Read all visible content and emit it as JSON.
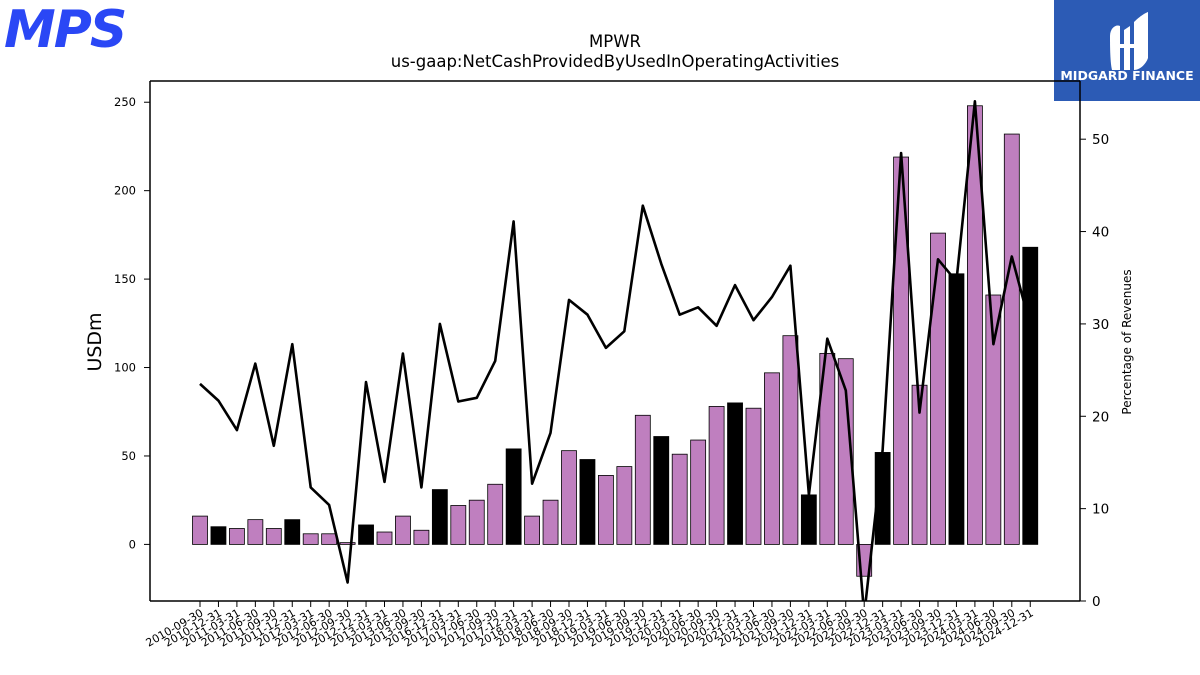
{
  "branding": {
    "left_logo_text": "MPS",
    "right_logo_text": "MIDGARD FINANCE",
    "left_logo_color": "#2a47f5",
    "right_logo_bg": "#2c5bb5"
  },
  "chart_data": {
    "type": "bar",
    "title": "MPWR",
    "subtitle": "us-gaap:NetCashProvidedByUsedInOperatingActivities",
    "ylabel": "USDm",
    "y2label": "Percentage of Revenues",
    "ylim": [
      -32,
      262
    ],
    "y2lim": [
      0,
      56.3
    ],
    "yticks": [
      0,
      50,
      100,
      150,
      200,
      250
    ],
    "y2ticks": [
      0,
      10,
      20,
      30,
      40,
      50
    ],
    "colors": {
      "quarter": "#bf7fbf",
      "year_end": "#000000",
      "line": "#000000"
    },
    "categories": [
      "2010-09-30",
      "2010-12-31",
      "2011-03-31",
      "2011-06-30",
      "2011-09-30",
      "2011-12-31",
      "2012-03-31",
      "2012-06-30",
      "2012-09-30",
      "2012-12-31",
      "2013-03-31",
      "2013-06-30",
      "2013-09-30",
      "2016-12-31",
      "2017-03-31",
      "2017-06-30",
      "2017-09-30",
      "2017-12-31",
      "2018-03-31",
      "2018-06-30",
      "2018-09-30",
      "2018-12-31",
      "2019-03-31",
      "2019-06-30",
      "2019-09-30",
      "2019-12-31",
      "2020-03-31",
      "2020-06-30",
      "2020-09-30",
      "2020-12-31",
      "2021-03-31",
      "2021-06-30",
      "2021-09-30",
      "2021-12-31",
      "2022-03-31",
      "2022-06-30",
      "2022-09-30",
      "2022-12-31",
      "2023-03-31",
      "2023-06-30",
      "2023-09-30",
      "2023-12-31",
      "2024-03-31",
      "2024-06-30",
      "2024-09-30",
      "2024-12-31"
    ],
    "series": [
      {
        "values": [
          16,
          10,
          9,
          14,
          9,
          14,
          6,
          6,
          1,
          11,
          7,
          16,
          8,
          31,
          22,
          25,
          34,
          54,
          16,
          25,
          53,
          48,
          39,
          44,
          73,
          61,
          51,
          59,
          78,
          80,
          77,
          97,
          118,
          28,
          108,
          105,
          -18,
          52,
          219,
          90,
          176,
          153,
          248,
          141,
          232,
          168
        ],
        "year_end": [
          false,
          true,
          false,
          false,
          false,
          true,
          false,
          false,
          false,
          true,
          false,
          false,
          false,
          true,
          false,
          false,
          false,
          true,
          false,
          false,
          false,
          true,
          false,
          false,
          false,
          true,
          false,
          false,
          false,
          true,
          false,
          false,
          false,
          true,
          false,
          false,
          false,
          true,
          false,
          false,
          false,
          true,
          false,
          false,
          false,
          true
        ]
      },
      {
        "values": [
          23.5,
          21.7,
          18.5,
          25.7,
          16.8,
          27.8,
          12.3,
          10.4,
          2.0,
          23.7,
          12.9,
          26.8,
          12.3,
          30.0,
          21.6,
          22.0,
          26.0,
          41.1,
          12.7,
          18.2,
          32.6,
          31.0,
          27.4,
          29.2,
          42.8,
          36.5,
          31.0,
          31.8,
          29.8,
          34.2,
          30.4,
          32.9,
          36.3,
          11.5,
          28.4,
          22.8,
          -1.5,
          16.3,
          48.5,
          20.4,
          37.0,
          34.6,
          54.1,
          27.8,
          37.3,
          29.8
        ]
      }
    ],
    "grid": false
  }
}
